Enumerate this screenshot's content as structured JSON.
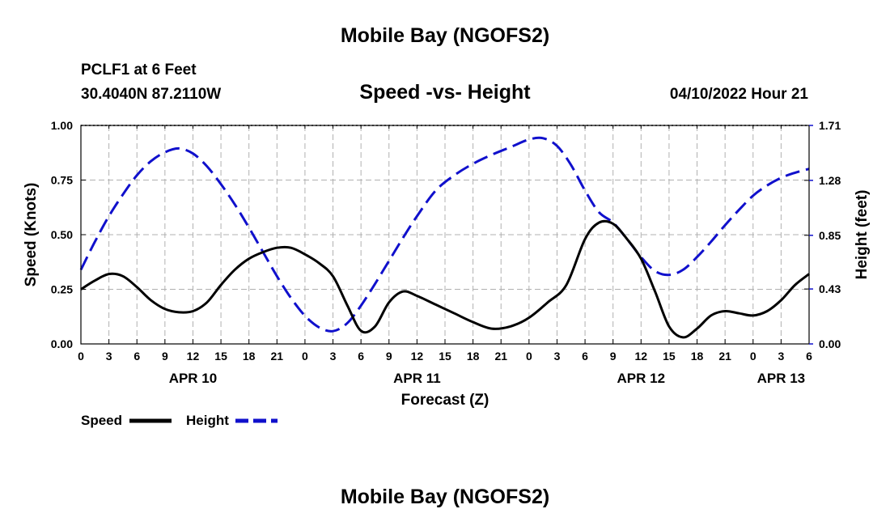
{
  "header": {
    "title": "Mobile Bay (NGOFS2)",
    "station": "PCLF1 at 6 Feet",
    "coords": "30.4040N  87.2110W",
    "subtitle": "Speed -vs- Height",
    "datetime": "04/10/2022 Hour 21"
  },
  "footer": {
    "title": "Mobile Bay (NGOFS2)"
  },
  "colors": {
    "speed": "#000000",
    "height": "#1010cc",
    "grid": "#b0b0b0"
  },
  "chart_data": {
    "type": "line",
    "title": "Speed -vs- Height",
    "xlabel": "Forecast (Z)",
    "ylabel": "Speed (Knots)",
    "y2label": "Height (feet)",
    "xlim": [
      0,
      78
    ],
    "ylim": [
      0,
      1.0
    ],
    "y2lim": [
      0,
      1.71
    ],
    "x_ticks": [
      0,
      3,
      6,
      9,
      12,
      15,
      18,
      21,
      24,
      27,
      30,
      33,
      36,
      39,
      42,
      45,
      48,
      51,
      54,
      57,
      60,
      63,
      66,
      69,
      72,
      75,
      78
    ],
    "x_tick_labels": [
      "0",
      "3",
      "6",
      "9",
      "12",
      "15",
      "18",
      "21",
      "0",
      "3",
      "6",
      "9",
      "12",
      "15",
      "18",
      "21",
      "0",
      "3",
      "6",
      "9",
      "12",
      "15",
      "18",
      "21",
      "0",
      "3",
      "6"
    ],
    "date_labels": [
      {
        "x": 12,
        "label": "APR 10"
      },
      {
        "x": 36,
        "label": "APR 11"
      },
      {
        "x": 60,
        "label": "APR 12"
      },
      {
        "x": 75,
        "label": "APR 13"
      }
    ],
    "y_ticks": [
      0.0,
      0.25,
      0.5,
      0.75,
      1.0
    ],
    "y_tick_labels": [
      "0.00",
      "0.25",
      "0.50",
      "0.75",
      "1.00"
    ],
    "y2_ticks": [
      0,
      0.43,
      0.85,
      1.28,
      1.71
    ],
    "y2_tick_labels": [
      "0.00",
      "0.43",
      "0.85",
      "1.28",
      "1.71"
    ],
    "legend_position": "bottom-left",
    "series": [
      {
        "name": "Speed",
        "axis": "left",
        "style": "solid",
        "x": [
          0,
          1.5,
          3,
          4.5,
          6,
          7.5,
          9,
          10.5,
          12,
          13.5,
          15,
          16.5,
          18,
          19.5,
          21,
          22.5,
          24,
          25.5,
          27,
          28.5,
          30,
          31.5,
          33,
          34.5,
          36,
          38,
          40,
          42,
          44,
          46,
          48,
          50,
          52,
          54,
          55.5,
          57,
          58.5,
          60,
          61.5,
          63,
          64.5,
          66,
          67.5,
          69,
          70.5,
          72,
          73.5,
          75,
          76.5,
          78
        ],
        "values": [
          0.25,
          0.29,
          0.32,
          0.31,
          0.26,
          0.2,
          0.16,
          0.145,
          0.15,
          0.19,
          0.27,
          0.34,
          0.39,
          0.42,
          0.44,
          0.44,
          0.41,
          0.37,
          0.31,
          0.18,
          0.06,
          0.08,
          0.19,
          0.24,
          0.22,
          0.18,
          0.14,
          0.1,
          0.07,
          0.08,
          0.12,
          0.19,
          0.27,
          0.48,
          0.555,
          0.55,
          0.48,
          0.39,
          0.24,
          0.08,
          0.03,
          0.07,
          0.13,
          0.15,
          0.14,
          0.13,
          0.15,
          0.2,
          0.27,
          0.32
        ]
      },
      {
        "name": "Height",
        "axis": "right",
        "style": "dashed",
        "x": [
          0,
          1.5,
          3,
          4.5,
          6,
          7.5,
          9,
          10.5,
          12,
          13.5,
          15,
          16.5,
          18,
          19.5,
          21,
          22.5,
          24,
          25.5,
          27,
          28.5,
          30,
          31.5,
          33,
          34.5,
          36,
          38,
          40,
          42,
          44,
          46,
          48,
          49.5,
          51,
          52.5,
          54,
          55.5,
          57,
          58.5,
          60,
          61.5,
          63,
          64.5,
          66,
          67.5,
          69,
          70.5,
          72,
          73.5,
          75,
          76.5,
          78
        ],
        "values": [
          0.58,
          0.8,
          1.0,
          1.17,
          1.32,
          1.43,
          1.5,
          1.53,
          1.49,
          1.39,
          1.25,
          1.09,
          0.91,
          0.72,
          0.53,
          0.36,
          0.22,
          0.13,
          0.1,
          0.16,
          0.3,
          0.47,
          0.65,
          0.83,
          1.0,
          1.2,
          1.32,
          1.41,
          1.48,
          1.54,
          1.6,
          1.61,
          1.55,
          1.4,
          1.2,
          1.03,
          0.95,
          0.82,
          0.68,
          0.57,
          0.54,
          0.58,
          0.68,
          0.8,
          0.93,
          1.05,
          1.16,
          1.24,
          1.3,
          1.34,
          1.37
        ]
      }
    ]
  }
}
